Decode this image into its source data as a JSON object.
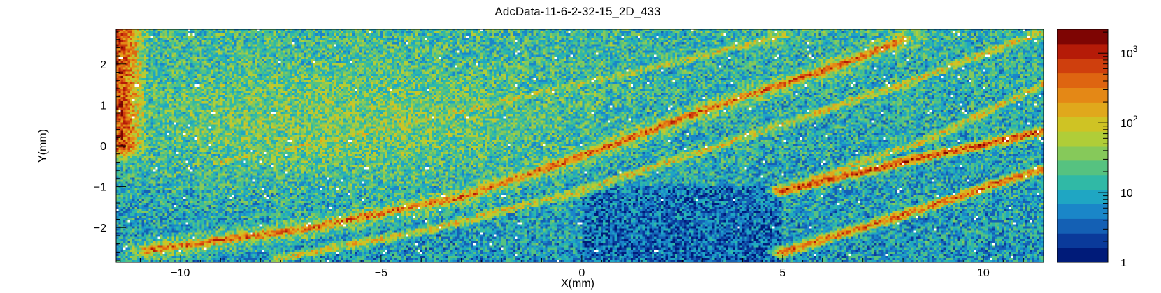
{
  "chart_data": {
    "type": "heatmap",
    "title": "AdcData-11-6-2-32-15_2D_433",
    "xlabel": "X(mm)",
    "ylabel": "Y(mm)",
    "xlim": [
      -11.6,
      11.5
    ],
    "ylim": [
      -2.85,
      2.85
    ],
    "x_ticks": [
      -10,
      -5,
      0,
      5,
      10
    ],
    "x_tick_labels": [
      "−10",
      "−5",
      "0",
      "5",
      "10"
    ],
    "y_ticks": [
      -2,
      -1,
      0,
      1,
      2
    ],
    "y_tick_labels": [
      "−2",
      "−1",
      "0",
      "1",
      "2"
    ],
    "z_scale": "log",
    "z_range": [
      1,
      2200
    ],
    "z_ticks": [
      1,
      10,
      100,
      1000
    ],
    "z_tick_labels": [
      {
        "base": "1",
        "exp": ""
      },
      {
        "base": "10",
        "exp": ""
      },
      {
        "base": "10",
        "exp": "2"
      },
      {
        "base": "10",
        "exp": "3"
      }
    ],
    "colormap": [
      "#001b79",
      "#0a3a9a",
      "#1460b4",
      "#1a86c8",
      "#1fa6c3",
      "#30b9a6",
      "#56c280",
      "#86c95a",
      "#b0cd38",
      "#cfc324",
      "#e0a81c",
      "#e48816",
      "#de6511",
      "#cf3f0d",
      "#b51b08",
      "#7e0503"
    ],
    "bins": {
      "nx": 400,
      "ny": 110
    },
    "features": [
      {
        "name": "band-1",
        "path_xy": [
          [
            -10.8,
            -2.55
          ],
          [
            -7,
            -2.05
          ],
          [
            -3,
            -1.25
          ],
          [
            0,
            -0.25
          ],
          [
            3,
            0.85
          ],
          [
            6.5,
            2.0
          ],
          [
            8,
            2.6
          ]
        ],
        "peak_counts": 350
      },
      {
        "name": "band-2",
        "path_xy": [
          [
            -7.5,
            -2.75
          ],
          [
            -4,
            -2.1
          ],
          [
            0,
            -1.1
          ],
          [
            4,
            0.2
          ],
          [
            8,
            1.5
          ],
          [
            11.5,
            2.8
          ]
        ],
        "peak_counts": 90
      },
      {
        "name": "band-3",
        "path_xy": [
          [
            -9,
            -0.4
          ],
          [
            -5,
            0.4
          ],
          [
            -1,
            1.3
          ],
          [
            3,
            2.2
          ],
          [
            5,
            2.7
          ]
        ],
        "peak_counts": 60
      },
      {
        "name": "band-4",
        "path_xy": [
          [
            5,
            -1.1
          ],
          [
            8,
            -0.4
          ],
          [
            11.5,
            0.35
          ]
        ],
        "peak_counts": 500
      },
      {
        "name": "band-5",
        "path_xy": [
          [
            5,
            -2.6
          ],
          [
            8,
            -1.7
          ],
          [
            11.5,
            -0.55
          ]
        ],
        "peak_counts": 300
      },
      {
        "name": "band-6",
        "path_xy": [
          [
            5.5,
            -0.9
          ],
          [
            8.5,
            0.1
          ],
          [
            11.5,
            1.5
          ]
        ],
        "peak_counts": 80
      },
      {
        "name": "hot-corner",
        "path_xy": [
          [
            -11.6,
            2.8
          ],
          [
            -11.6,
            0.0
          ]
        ],
        "peak_counts": 600
      }
    ],
    "grid": false,
    "legend": "colorbar-right"
  }
}
